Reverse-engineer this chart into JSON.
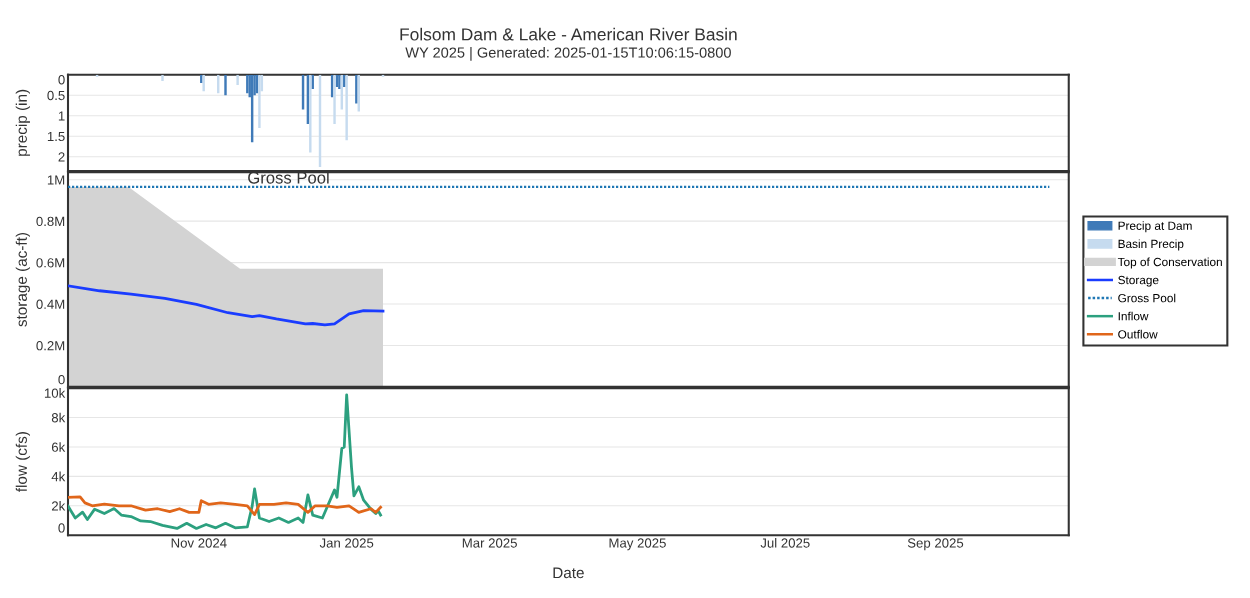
{
  "chart_data": [
    {
      "type": "bar",
      "title": "Folsom Dam & Lake - American River Basin",
      "subtitle": "WY 2025 | Generated: 2025-01-15T10:06:15-0800",
      "ylabel": "precip (in)",
      "xlim": [
        "2024-09-08",
        "2025-10-26"
      ],
      "ylim": [
        2.35,
        0
      ],
      "yticks": [
        0,
        0.5,
        1,
        1.5,
        2
      ],
      "tick_labels": "y",
      "grid": "y",
      "legend": "right",
      "series": [
        {
          "name": "Precip at Dam",
          "color": "#3f7ab8",
          "x": [
            "2024-11-02",
            "2024-11-12",
            "2024-11-21",
            "2024-11-22",
            "2024-11-23",
            "2024-11-24",
            "2024-11-25",
            "2024-12-14",
            "2024-12-16",
            "2024-12-18",
            "2024-12-26",
            "2024-12-28",
            "2024-12-29",
            "2024-12-31",
            "2025-01-05"
          ],
          "values": [
            0.2,
            0.5,
            0.45,
            0.55,
            1.65,
            0.5,
            0.45,
            0.85,
            1.2,
            0.35,
            0.55,
            0.3,
            0.35,
            0.3,
            0.7
          ]
        },
        {
          "name": "Basin Precip",
          "color": "#c6dbef",
          "x": [
            "2024-09-20",
            "2024-10-17",
            "2024-11-03",
            "2024-11-09",
            "2024-11-17",
            "2024-11-26",
            "2024-11-27",
            "2024-12-17",
            "2024-12-21",
            "2024-12-27",
            "2024-12-30",
            "2025-01-01",
            "2025-01-06",
            "2025-01-16"
          ],
          "values": [
            0.05,
            0.15,
            0.4,
            0.45,
            0.25,
            1.3,
            0.4,
            1.9,
            2.25,
            1.2,
            0.85,
            1.6,
            0.9,
            0.05
          ]
        }
      ]
    },
    {
      "type": "line",
      "ylabel": "storage (ac-ft)",
      "xlim": [
        "2024-09-08",
        "2025-10-26"
      ],
      "ylim": [
        0,
        1036000
      ],
      "yticks": [
        {
          "value": 0,
          "label": "0"
        },
        {
          "value": 200000,
          "label": "0.2M"
        },
        {
          "value": 400000,
          "label": "0.4M"
        },
        {
          "value": 600000,
          "label": "0.6M"
        },
        {
          "value": 800000,
          "label": "0.8M"
        },
        {
          "value": 1000000,
          "label": "1M"
        }
      ],
      "tick_labels": "y",
      "grid": "y",
      "legend": "right",
      "annotations": [
        {
          "text": "Gross Pool",
          "x": "2024-12-08",
          "y": 965000
        }
      ],
      "series": [
        {
          "name": "Top of Conservation",
          "type": "area",
          "color": "#d3d3d3",
          "x": [
            "2024-09-08",
            "2024-10-03",
            "2024-11-18",
            "2025-01-16"
          ],
          "values": [
            965000,
            965000,
            570000,
            570000
          ]
        },
        {
          "name": "Storage",
          "color": "#1a3cff",
          "line_style": "solid",
          "x": [
            "2024-09-08",
            "2024-09-21",
            "2024-10-04",
            "2024-10-18",
            "2024-10-31",
            "2024-11-13",
            "2024-11-23",
            "2024-11-26",
            "2024-12-03",
            "2024-12-15",
            "2024-12-18",
            "2024-12-23",
            "2024-12-27",
            "2025-01-02",
            "2025-01-08",
            "2025-01-16"
          ],
          "values": [
            488000,
            464000,
            448000,
            427000,
            398000,
            358000,
            339000,
            344000,
            328000,
            304000,
            306000,
            299000,
            304000,
            352000,
            368000,
            366000
          ]
        },
        {
          "name": "Gross Pool",
          "color": "#1f77b4",
          "line_style": "dotted",
          "x": [
            "2024-09-08",
            "2025-10-18"
          ],
          "values": [
            965000,
            965000
          ]
        }
      ]
    },
    {
      "type": "line",
      "xlabel": "Date",
      "ylabel": "flow (cfs)",
      "xlim": [
        "2024-09-08",
        "2025-10-26"
      ],
      "ylim": [
        0,
        10000
      ],
      "xticks": [
        {
          "value": "2024-11-01",
          "label": "Nov 2024"
        },
        {
          "value": "2025-01-01",
          "label": "Jan 2025"
        },
        {
          "value": "2025-03-01",
          "label": "Mar 2025"
        },
        {
          "value": "2025-05-01",
          "label": "May 2025"
        },
        {
          "value": "2025-07-01",
          "label": "Jul 2025"
        },
        {
          "value": "2025-09-01",
          "label": "Sep 2025"
        }
      ],
      "yticks": [
        0,
        {
          "value": 2000,
          "label": "2k"
        },
        {
          "value": 4000,
          "label": "4k"
        },
        {
          "value": 6000,
          "label": "6k"
        },
        {
          "value": 8000,
          "label": "8k"
        },
        {
          "value": 10000,
          "label": "10k"
        }
      ],
      "grid": "y",
      "legend": "right",
      "line_style": "solid",
      "series": [
        {
          "name": "Inflow",
          "color": "#2ca07f",
          "x": [
            "2024-09-08",
            "2024-09-11",
            "2024-09-14",
            "2024-09-16",
            "2024-09-19",
            "2024-09-23",
            "2024-09-27",
            "2024-09-30",
            "2024-10-04",
            "2024-10-08",
            "2024-10-12",
            "2024-10-17",
            "2024-10-23",
            "2024-10-27",
            "2024-10-31",
            "2024-11-04",
            "2024-11-08",
            "2024-11-12",
            "2024-11-16",
            "2024-11-21",
            "2024-11-23",
            "2024-11-24",
            "2024-11-26",
            "2024-11-30",
            "2024-12-04",
            "2024-12-08",
            "2024-12-12",
            "2024-12-14",
            "2024-12-16",
            "2024-12-18",
            "2024-12-22",
            "2024-12-27",
            "2024-12-28",
            "2024-12-30",
            "2024-12-31",
            "2025-01-01",
            "2025-01-03",
            "2025-01-04",
            "2025-01-06",
            "2025-01-08",
            "2025-01-11",
            "2025-01-13",
            "2025-01-14",
            "2025-01-15"
          ],
          "values": [
            1980,
            1170,
            1570,
            1070,
            1770,
            1470,
            1810,
            1370,
            1270,
            970,
            930,
            670,
            460,
            810,
            460,
            730,
            500,
            810,
            500,
            560,
            1980,
            3150,
            1170,
            930,
            1170,
            870,
            1170,
            870,
            2740,
            1370,
            1170,
            3080,
            2580,
            5900,
            6000,
            9540,
            4600,
            2680,
            3290,
            2380,
            1770,
            1470,
            1670,
            1370
          ]
        },
        {
          "name": "Outflow",
          "color": "#e0661a",
          "x": [
            "2024-09-08",
            "2024-09-13",
            "2024-09-15",
            "2024-09-18",
            "2024-09-23",
            "2024-09-29",
            "2024-10-04",
            "2024-10-10",
            "2024-10-15",
            "2024-10-20",
            "2024-10-24",
            "2024-10-28",
            "2024-11-01",
            "2024-11-02",
            "2024-11-05",
            "2024-11-10",
            "2024-11-16",
            "2024-11-21",
            "2024-11-24",
            "2024-11-26",
            "2024-12-02",
            "2024-12-07",
            "2024-12-12",
            "2024-12-16",
            "2024-12-19",
            "2024-12-24",
            "2024-12-28",
            "2025-01-02",
            "2025-01-06",
            "2025-01-11",
            "2025-01-13",
            "2025-01-15"
          ],
          "values": [
            2570,
            2600,
            2200,
            2000,
            2120,
            2000,
            2000,
            1700,
            1800,
            1600,
            1800,
            1550,
            1550,
            2350,
            2100,
            2200,
            2100,
            2000,
            1400,
            2100,
            2100,
            2200,
            2100,
            1550,
            2000,
            2000,
            1900,
            2000,
            1550,
            1800,
            1550,
            1900
          ]
        }
      ]
    }
  ]
}
